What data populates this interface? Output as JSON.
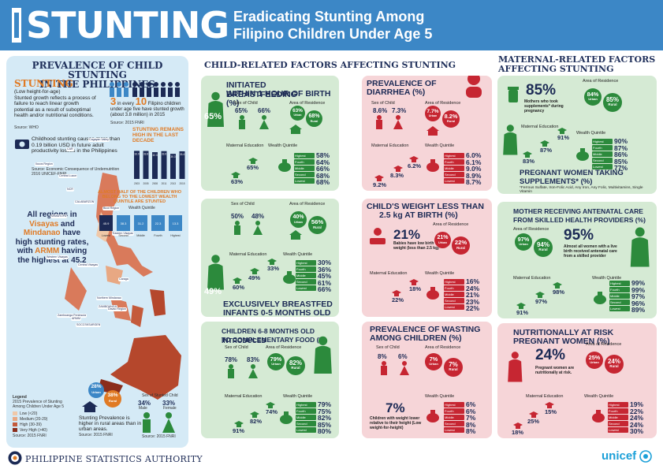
{
  "header": {
    "stunting": "STUNTING",
    "subtitle_line1": "Eradicating Stunting Among",
    "subtitle_line2": "Filipino Children Under Age 5"
  },
  "left": {
    "title1": "PREVALENCE OF CHILD STUNTING",
    "title2": "IN THE PHILIPPINES",
    "stunting_word": "STUNTING",
    "def_sub": "(Low height-for-age)",
    "def_text": "Stunted growth reflects a process of failure to reach linear growth potential as a result of suboptimal health and/or nutritional conditions.",
    "def_source": "Source: WHO",
    "three": "3",
    "in_every": "in every",
    "ten": "10",
    "fil_text": "Filipino children under age five have stunted growth (about 3.8 million) in 2015",
    "fil_source": "Source: 2015 FNRI",
    "remains_title": "STUNTING REMAINS HIGH IN THE LAST DECADE",
    "years": [
      "2003",
      "2005",
      "2008",
      "2011",
      "2013",
      "2015"
    ],
    "years_values": [
      33.9,
      33.8,
      32.3,
      33.6,
      30.3,
      33.4
    ],
    "cost_text": "Childhood stunting causes more than 0.19 billion USD in future adult productivity losses in the Philippines",
    "cost_source": "Source: Economic Consequence of Undernutrition 2016 UNICEF-FNRI",
    "half_title": "ALMOST HALF OF THE CHILDREN WHO BELONG TO THE LOWEST WEALTH QUINTILE ARE STUNTED",
    "wealth_label": "Wealth Quintile",
    "quintiles": [
      "Lowest",
      "Second",
      "Middle",
      "Fourth",
      "Highest"
    ],
    "quintile_values": [
      45.9,
      38.3,
      31.2,
      22.3,
      13.3
    ],
    "regions_text1": "All regions in",
    "regions_text2": "Visayas",
    "regions_text3": "and",
    "regions_text4": "Mindanao",
    "regions_text5": "have high stunting rates, with",
    "regions_text6": "ARMM",
    "regions_text7": "having the highest at 45.2",
    "map_labels": [
      "CAR",
      "Cagayan Valley",
      "Ilocos Region",
      "Central Luzon",
      "NCR",
      "CALABARZON",
      "MIMAROPA",
      "Bicol Region",
      "Eastern Visayas",
      "Western Visayas",
      "Central Visayas",
      "Caraga",
      "Northern Mindanao",
      "ZAMBOANGA",
      "Davao Region",
      "Zamboanga Peninsula",
      "SOCCSKSARGEN",
      "ARMM"
    ],
    "legend_title": "Legend",
    "legend_sub": "2015 Prevalence of Stunting Among Children Under Age 5",
    "legend_items": [
      "Low (<20)",
      "Medium (20-29)",
      "High (30-39)",
      "Very High (>40)",
      "Source: 2015 FNRI"
    ],
    "urban": "28%",
    "urban_lbl": "Urban",
    "rural": "38%",
    "rural_lbl": "Rural",
    "urban_text": "Stunting Prevalence is higher in rural areas than in urban areas.",
    "urban_source": "Source: 2015 FNRI",
    "sex_title": "Sex of Stunted Child",
    "male": "34%",
    "male_lbl": "Male",
    "female": "33%",
    "female_lbl": "Female",
    "sex_source": "Source: 2015 FNRI"
  },
  "child_heading": "CHILD-RELATED FACTORS AFFECTING STUNTING",
  "maternal_heading1": "MATERNAL-RELATED FACTORS",
  "maternal_heading2": "AFFECTING STUNTING",
  "labels": {
    "sex": "Sex of Child",
    "area": "Area of Residence",
    "mat_edu": "Maternal Education",
    "wealth": "Wealth Quintile",
    "male": "Male",
    "female": "Female",
    "urban": "Urban",
    "rural": "Rural",
    "none": "None",
    "elem": "Elementary",
    "hs": "High School",
    "college": "College",
    "quint": [
      "Highest",
      "Fourth",
      "Middle",
      "Second",
      "Lowest"
    ]
  },
  "c1": {
    "title1": "INITIATED BREASTFEEDING",
    "title2": "WITHIN 1 HOUR OF BIRTH (%)",
    "big": "65%",
    "male": "65%",
    "female": "66%",
    "urban": "63%",
    "rural": "68%",
    "edu": [
      "63%",
      "65%"
    ],
    "wealth": [
      "58%",
      "64%",
      "66%",
      "68%",
      "68%"
    ]
  },
  "c2": {
    "title1": "PREVALENCE OF",
    "title2": "DIARRHEA (%)",
    "male": "8.6%",
    "female": "7.3%",
    "urban": "7.7%",
    "rural": "8.2%",
    "edu": [
      "9.2%",
      "8.3%",
      "6.2%"
    ],
    "wealth": [
      "6.0%",
      "6.1%",
      "9.0%",
      "8.9%",
      "8.7%"
    ]
  },
  "c3": {
    "title1": "EXCLUSIVELY BREASTFED",
    "title2": "INFANTS 0-5 MONTHS OLD (%)",
    "big": "49%",
    "male": "50%",
    "female": "48%",
    "urban": "40%",
    "rural": "56%",
    "edu": [
      "60%",
      "49%",
      "33%"
    ],
    "wealth": [
      "30%",
      "36%",
      "45%",
      "61%",
      "66%"
    ]
  },
  "c4": {
    "title1": "CHILD'S WEIGHT LESS THAN",
    "title2": "2.5 kg AT BIRTH (%)",
    "big": "21%",
    "big_text": "Babies have low birth weight (less than 2.5 kg)",
    "urban": "21%",
    "rural": "22%",
    "edu": [
      "22%",
      "18%"
    ],
    "wealth": [
      "16%",
      "24%",
      "21%",
      "23%",
      "22%"
    ]
  },
  "c5": {
    "title1": "CHILDREN 6-8 MONTHS OLD INTRODUCED",
    "title2": "TO COMPLEMENTARY FOOD (%)",
    "male": "78%",
    "female": "83%",
    "urban": "79%",
    "rural": "82%",
    "edu": [
      "91%",
      "82%",
      "74%"
    ],
    "wealth": [
      "79%",
      "75%",
      "82%",
      "85%",
      "80%"
    ]
  },
  "c6": {
    "title1": "PREVALENCE OF WASTING",
    "title2": "AMONG CHILDREN (%)",
    "male": "8%",
    "female": "6%",
    "urban": "7%",
    "rural": "7%",
    "big": "7%",
    "big_text": "Children with weight lower relative to their height (Low weight-for-height)",
    "wealth": [
      "6%",
      "6%",
      "7%",
      "8%",
      "8%"
    ]
  },
  "m1": {
    "big": "85%",
    "big_text": "Mothers who took supplements* during pregnancy",
    "urban": "84%",
    "rural": "85%",
    "edu": [
      "83%",
      "87%",
      "91%"
    ],
    "wealth": [
      "90%",
      "87%",
      "86%",
      "85%",
      "77%"
    ],
    "title1": "PREGNANT WOMEN TAKING",
    "title2": "SUPPLEMENTS* (%)",
    "note": "*Ferrous Sulfate, Iron-Folic Acid, Any Iron, Any Folic, Multivitamins, Single Vitamin"
  },
  "m2": {
    "title1": "MOTHER RECEIVING ANTENATAL CARE",
    "title2": "FROM SKILLED HEALTH PROVIDERS (%)",
    "urban": "97%",
    "rural": "94%",
    "big": "95%",
    "big_text": "Almost all women with a live birth received antenatal care from a skilled provider",
    "edu": [
      "91%",
      "97%",
      "98%"
    ],
    "wealth": [
      "99%",
      "99%",
      "97%",
      "96%",
      "89%"
    ]
  },
  "m3": {
    "title1": "NUTRITIONALLY AT RISK",
    "title2": "PREGNANT WOMEN (%)",
    "big": "24%",
    "big_text": "Pregnant women are nutritionally at risk.",
    "urban": "25%",
    "rural": "24%",
    "edu": [
      "18%",
      "25%",
      "15%"
    ],
    "wealth": [
      "19%",
      "22%",
      "24%",
      "24%",
      "30%"
    ]
  },
  "footer": {
    "psa": "PHILIPPINE STATISTICS AUTHORITY",
    "unicef": "unicef"
  },
  "colors": {
    "blue": "#3c87c6",
    "green": "#2c8a3c",
    "red": "#c62632",
    "navy": "#1c2a55"
  }
}
